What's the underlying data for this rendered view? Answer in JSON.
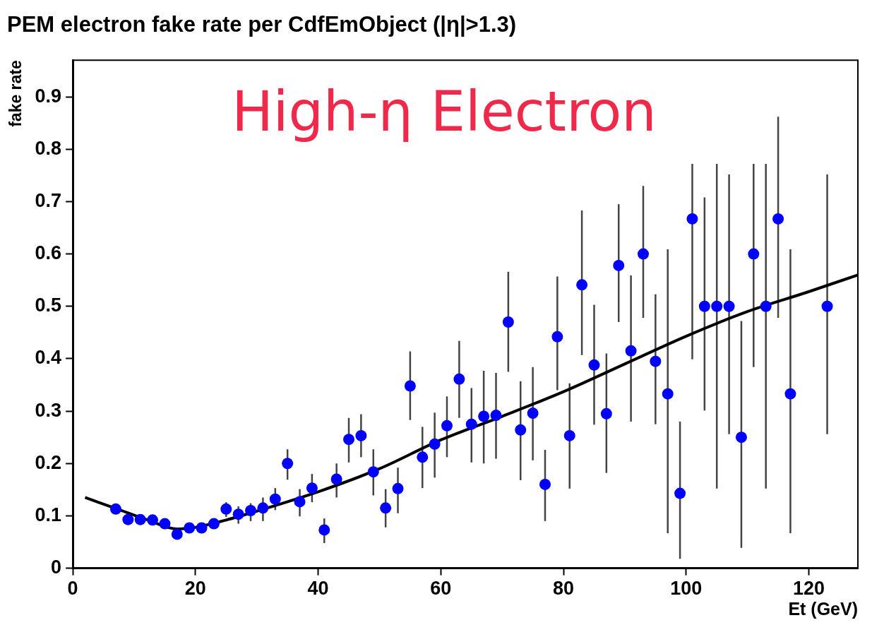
{
  "chart_data": {
    "type": "scatter",
    "title": "PEM electron fake rate per CdfEmObject (|η|>1.3)",
    "xlabel": "Et (GeV)",
    "ylabel": "fake rate",
    "annotations": [
      "High-η Electron"
    ],
    "xlim": [
      0,
      128
    ],
    "xticks": [
      0,
      20,
      40,
      60,
      80,
      100,
      120
    ],
    "ylim": [
      0,
      0.97
    ],
    "yticks": [
      0,
      0.1,
      0.2,
      0.3,
      0.4,
      0.5,
      0.6,
      0.7,
      0.8,
      0.9
    ],
    "grid": false,
    "legend": false,
    "marker": "circle",
    "series": [
      {
        "type": "scatter",
        "color": "#0000ff",
        "x": [
          7,
          9,
          11,
          13,
          15,
          17,
          19,
          21,
          23,
          25,
          27,
          29,
          31,
          33,
          35,
          37,
          39,
          41,
          43,
          45,
          47,
          49,
          51,
          53,
          55,
          57,
          59,
          61,
          63,
          65,
          67,
          69,
          71,
          73,
          75,
          77,
          79,
          81,
          83,
          85,
          87,
          89,
          91,
          93,
          95,
          97,
          99,
          101,
          103,
          105,
          107,
          109,
          111,
          113,
          115,
          117,
          123
        ],
        "values": [
          0.113,
          0.093,
          0.093,
          0.092,
          0.085,
          0.065,
          0.077,
          0.077,
          0.085,
          0.113,
          0.103,
          0.11,
          0.115,
          0.132,
          0.2,
          0.127,
          0.153,
          0.073,
          0.17,
          0.246,
          0.253,
          0.184,
          0.115,
          0.152,
          0.348,
          0.212,
          0.237,
          0.272,
          0.361,
          0.275,
          0.29,
          0.292,
          0.47,
          0.264,
          0.296,
          0.16,
          0.442,
          0.253,
          0.541,
          0.388,
          0.295,
          0.578,
          0.415,
          0.6,
          0.395,
          0.333,
          0.143,
          0.667,
          0.5,
          0.5,
          0.5,
          0.25,
          0.6,
          0.5,
          0.667,
          0.333,
          0.5
        ],
        "errors": [
          null,
          null,
          null,
          null,
          null,
          null,
          null,
          null,
          null,
          [
            0.098,
            0.126
          ],
          [
            0.085,
            0.118
          ],
          [
            0.09,
            0.124
          ],
          [
            0.09,
            0.135
          ],
          [
            0.111,
            0.153
          ],
          [
            0.169,
            0.227
          ],
          [
            0.099,
            0.151
          ],
          [
            0.126,
            0.18
          ],
          [
            0.048,
            0.095
          ],
          [
            0.135,
            0.2
          ],
          [
            0.202,
            0.287
          ],
          [
            0.212,
            0.294
          ],
          [
            0.139,
            0.227
          ],
          [
            0.078,
            0.151
          ],
          [
            0.105,
            0.192
          ],
          [
            0.283,
            0.414
          ],
          [
            0.153,
            0.27
          ],
          [
            0.173,
            0.297
          ],
          [
            0.212,
            0.328
          ],
          [
            0.287,
            0.434
          ],
          [
            0.202,
            0.344
          ],
          [
            0.2,
            0.377
          ],
          [
            0.209,
            0.373
          ],
          [
            0.375,
            0.566
          ],
          [
            0.168,
            0.357
          ],
          [
            0.206,
            0.384
          ],
          [
            0.09,
            0.226
          ],
          [
            0.34,
            0.557
          ],
          [
            0.152,
            0.353
          ],
          [
            0.407,
            0.683
          ],
          [
            0.274,
            0.503
          ],
          [
            0.182,
            0.41
          ],
          [
            0.47,
            0.695
          ],
          [
            0.28,
            0.559
          ],
          [
            0.478,
            0.73
          ],
          [
            0.275,
            0.523
          ],
          [
            0.067,
            0.609
          ],
          [
            0.018,
            0.28
          ],
          [
            0.399,
            0.772
          ],
          [
            0.301,
            0.708
          ],
          [
            0.152,
            0.772
          ],
          [
            0.256,
            0.752
          ],
          [
            0.039,
            0.472
          ],
          [
            0.384,
            0.772
          ],
          [
            0.152,
            0.772
          ],
          [
            0.478,
            0.862
          ],
          [
            0.067,
            0.609
          ],
          [
            0.256,
            0.752
          ]
        ]
      },
      {
        "type": "line",
        "color": "#000000",
        "marker": "none",
        "x": [
          2,
          8,
          12,
          17,
          20,
          25,
          30,
          40,
          50,
          60,
          70,
          80,
          90,
          100,
          110,
          120,
          128
        ],
        "values": [
          0.135,
          0.11,
          0.093,
          0.075,
          0.078,
          0.092,
          0.109,
          0.146,
          0.19,
          0.245,
          0.29,
          0.337,
          0.39,
          0.443,
          0.49,
          0.528,
          0.56
        ]
      }
    ]
  }
}
